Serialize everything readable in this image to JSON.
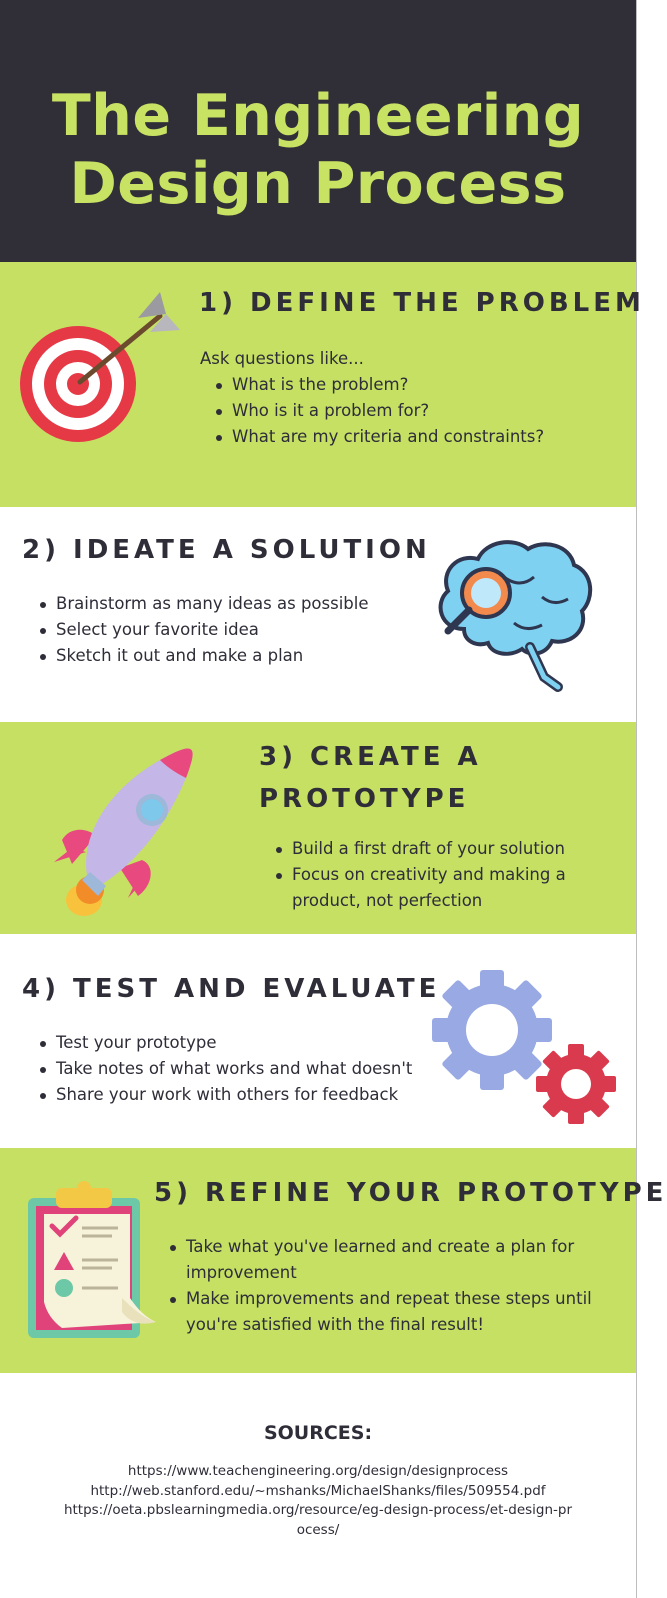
{
  "header": {
    "title_line1": "The Engineering",
    "title_line2": "Design Process"
  },
  "steps": [
    {
      "heading": "1) DEFINE THE PROBLEM",
      "intro": "Ask questions like...",
      "bullets": [
        "What is the problem?",
        "Who is it a problem for?",
        "What are my criteria and constraints?"
      ],
      "icon": "target-arrow-icon"
    },
    {
      "heading": "2) IDEATE A SOLUTION",
      "bullets": [
        "Brainstorm as many ideas as possible",
        "Select your favorite idea",
        "Sketch it out and make a plan"
      ],
      "icon": "brain-magnifier-icon"
    },
    {
      "heading_line1": "3) CREATE A",
      "heading_line2": "PROTOTYPE",
      "bullets": [
        "Build a first draft of your solution",
        "Focus on creativity and making a product, not perfection"
      ],
      "icon": "rocket-icon"
    },
    {
      "heading": "4) TEST AND EVALUATE",
      "bullets": [
        "Test your prototype",
        "Take notes of what works and what doesn't",
        "Share your work with others for feedback"
      ],
      "icon": "gears-icon"
    },
    {
      "heading": "5) REFINE YOUR PROTOTYPE",
      "bullets": [
        "Take what you've learned and create a plan for improvement",
        "Make improvements and repeat these steps until you're satisfied with the final result!"
      ],
      "icon": "clipboard-checklist-icon"
    }
  ],
  "sources": {
    "heading": "SOURCES:",
    "links": [
      "https://www.teachengineering.org/design/designprocess",
      "http://web.stanford.edu/~mshanks/MichaelShanks/files/509554.pdf",
      "https://oeta.pbslearningmedia.org/resource/eg-design-process/et-design-process/"
    ]
  },
  "colors": {
    "header_bg": "#302f38",
    "title": "#c8e264",
    "band_green": "#c5e063",
    "text": "#2e2d38"
  }
}
